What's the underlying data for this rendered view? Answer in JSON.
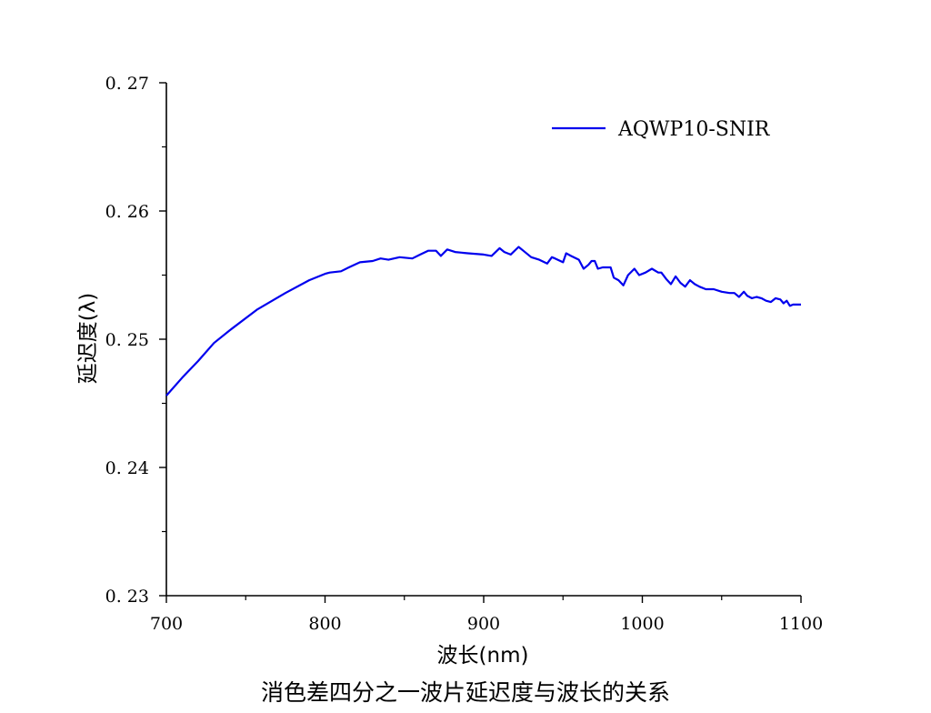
{
  "caption": "消色差四分之一波片延迟度与波长的关系",
  "chart_data": {
    "type": "line",
    "xlabel": "波长(nm)",
    "ylabel": "延迟度(λ)",
    "xlim": [
      700,
      1100
    ],
    "ylim": [
      0.23,
      0.27
    ],
    "x_ticks": [
      "700",
      "800",
      "900",
      "1000",
      "1100"
    ],
    "y_ticks": [
      "0. 23",
      "0. 24",
      "0. 25",
      "0. 26",
      "0. 27"
    ],
    "grid": false,
    "legend_position": "top-right",
    "series": [
      {
        "name": "AQWP10-SNIR",
        "color": "#0000ee",
        "x": [
          700,
          710,
          720,
          730,
          740,
          757,
          775,
          790,
          800,
          803,
          810,
          815,
          822,
          830,
          835,
          840,
          847,
          855,
          860,
          865,
          870,
          873,
          877,
          882,
          890,
          900,
          905,
          910,
          913,
          917,
          922,
          925,
          930,
          935,
          940,
          943,
          945,
          950,
          952,
          955,
          960,
          963,
          966,
          968,
          970,
          972,
          975,
          980,
          982,
          985,
          988,
          991,
          995,
          998,
          1002,
          1006,
          1010,
          1012,
          1015,
          1018,
          1021,
          1024,
          1027,
          1030,
          1033,
          1036,
          1040,
          1045,
          1050,
          1055,
          1058,
          1061,
          1064,
          1066,
          1069,
          1072,
          1075,
          1078,
          1081,
          1084,
          1087,
          1089,
          1091,
          1093,
          1095,
          1097,
          1100
        ],
        "y": [
          0.2456,
          0.247,
          0.2483,
          0.2497,
          0.2507,
          0.2523,
          0.2536,
          0.2546,
          0.2551,
          0.2552,
          0.2553,
          0.2556,
          0.256,
          0.2561,
          0.2563,
          0.2562,
          0.2564,
          0.2563,
          0.2566,
          0.2569,
          0.2569,
          0.2565,
          0.257,
          0.2568,
          0.2567,
          0.2566,
          0.2565,
          0.2571,
          0.2568,
          0.2566,
          0.2572,
          0.2569,
          0.2564,
          0.2562,
          0.2559,
          0.2564,
          0.2563,
          0.256,
          0.2567,
          0.2565,
          0.2562,
          0.2555,
          0.2558,
          0.2561,
          0.2561,
          0.2555,
          0.2556,
          0.2556,
          0.2548,
          0.2546,
          0.2542,
          0.255,
          0.2555,
          0.255,
          0.2552,
          0.2555,
          0.2552,
          0.2552,
          0.2547,
          0.2543,
          0.2549,
          0.2544,
          0.2541,
          0.2546,
          0.2543,
          0.2541,
          0.2539,
          0.2539,
          0.2537,
          0.2536,
          0.2536,
          0.2533,
          0.2537,
          0.2534,
          0.2532,
          0.2533,
          0.2532,
          0.253,
          0.2529,
          0.2532,
          0.2531,
          0.2528,
          0.253,
          0.2526,
          0.2527,
          0.2527,
          0.2527
        ]
      }
    ]
  }
}
